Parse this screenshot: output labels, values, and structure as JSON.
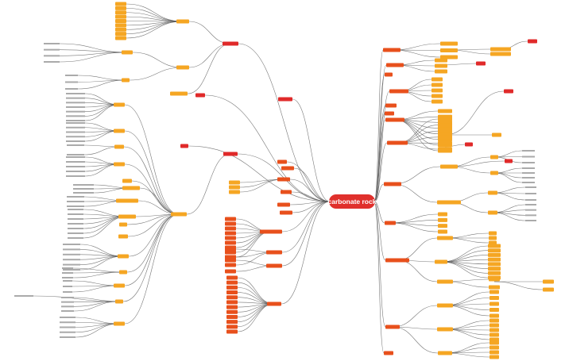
{
  "central_node": {
    "label": "carbonate rock"
  }
}
